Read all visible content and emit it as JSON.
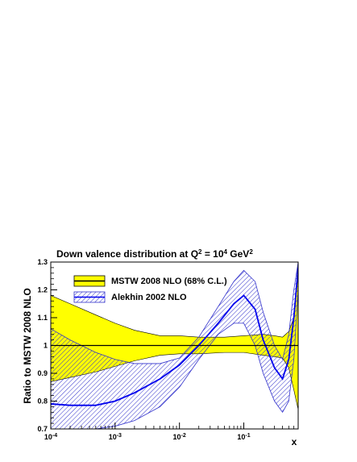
{
  "chart_data": {
    "type": "line",
    "title_main": "Down valence distribution at Q",
    "title_sup1": "2",
    "title_mid": " = 10",
    "title_sup2": "4",
    "title_end": " GeV",
    "title_sup3": "2",
    "ylabel": "Ratio to MSTW 2008 NLO",
    "xlabel": "x",
    "x_scale": "log",
    "xlim": [
      0.0001,
      0.7
    ],
    "ylim": [
      0.7,
      1.3
    ],
    "x_ticks": [
      {
        "value": 0.0001,
        "base": "10",
        "exp": "-4"
      },
      {
        "value": 0.001,
        "base": "10",
        "exp": "-3"
      },
      {
        "value": 0.01,
        "base": "10",
        "exp": "-2"
      },
      {
        "value": 0.1,
        "base": "10",
        "exp": "-1"
      }
    ],
    "y_ticks": [
      {
        "value": 0.7,
        "label": "0.7"
      },
      {
        "value": 0.8,
        "label": "0.8"
      },
      {
        "value": 0.9,
        "label": "0.9"
      },
      {
        "value": 1.0,
        "label": "1"
      },
      {
        "value": 1.1,
        "label": "1.1"
      },
      {
        "value": 1.2,
        "label": "1.2"
      },
      {
        "value": 1.3,
        "label": "1.3"
      }
    ],
    "reference_line": 1.0,
    "series": [
      {
        "name": "MSTW 2008 NLO (68% C.L.)",
        "style": "band",
        "fill_color": "#ffff00",
        "line_color": "#000000",
        "x": [
          0.0001,
          0.0002,
          0.0005,
          0.001,
          0.002,
          0.005,
          0.01,
          0.02,
          0.05,
          0.1,
          0.2,
          0.3,
          0.4,
          0.5,
          0.6,
          0.7
        ],
        "center": [
          1,
          1,
          1,
          1,
          1,
          1,
          1,
          1,
          1,
          1,
          1,
          1,
          1,
          1,
          1,
          1
        ],
        "upper": [
          1.18,
          1.15,
          1.11,
          1.08,
          1.055,
          1.035,
          1.035,
          1.03,
          1.03,
          1.035,
          1.04,
          1.035,
          1.03,
          1.05,
          1.1,
          1.3
        ],
        "lower": [
          0.87,
          0.885,
          0.905,
          0.925,
          0.945,
          0.965,
          0.97,
          0.97,
          0.975,
          0.975,
          0.965,
          0.96,
          0.955,
          0.92,
          0.84,
          0.77
        ]
      },
      {
        "name": "Alekhin 2002 NLO",
        "style": "hatched-band",
        "fill_color": "#3333cc",
        "line_color": "#0000ee",
        "x": [
          0.0001,
          0.0002,
          0.0005,
          0.001,
          0.002,
          0.005,
          0.01,
          0.02,
          0.04,
          0.07,
          0.1,
          0.15,
          0.2,
          0.3,
          0.4,
          0.5,
          0.6,
          0.7
        ],
        "center": [
          0.79,
          0.785,
          0.785,
          0.8,
          0.83,
          0.88,
          0.93,
          1.0,
          1.08,
          1.15,
          1.18,
          1.13,
          1.02,
          0.92,
          0.88,
          0.95,
          1.1,
          1.28
        ],
        "upper": [
          1.06,
          1.02,
          0.975,
          0.95,
          0.935,
          0.935,
          0.955,
          1.03,
          1.14,
          1.23,
          1.27,
          1.23,
          1.12,
          1.0,
          0.95,
          1.04,
          1.2,
          1.3
        ],
        "lower": [
          0.7,
          0.7,
          0.7,
          0.71,
          0.73,
          0.78,
          0.85,
          0.95,
          1.04,
          1.08,
          1.08,
          1.0,
          0.9,
          0.8,
          0.76,
          0.8,
          0.95,
          1.2
        ]
      }
    ],
    "legend": {
      "placement": "top-left"
    }
  }
}
